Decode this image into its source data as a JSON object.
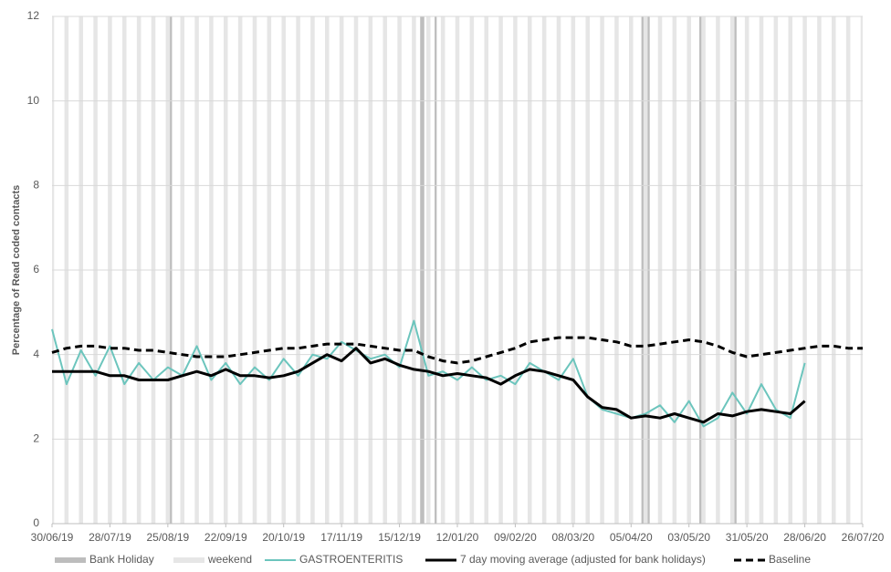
{
  "chart_data": {
    "type": "line",
    "y_label": "Percentage of Read coded contacts",
    "x": [
      "30/06/19",
      "07/07/19",
      "14/07/19",
      "21/07/19",
      "28/07/19",
      "04/08/19",
      "11/08/19",
      "18/08/19",
      "25/08/19",
      "01/09/19",
      "08/09/19",
      "15/09/19",
      "22/09/19",
      "29/09/19",
      "06/10/19",
      "13/10/19",
      "20/10/19",
      "27/10/19",
      "03/11/19",
      "10/11/19",
      "17/11/19",
      "24/11/19",
      "01/12/19",
      "08/12/19",
      "15/12/19",
      "22/12/19",
      "29/12/19",
      "05/01/20",
      "12/01/20",
      "19/01/20",
      "26/01/20",
      "02/02/20",
      "09/02/20",
      "16/02/20",
      "23/02/20",
      "01/03/20",
      "08/03/20",
      "15/03/20",
      "22/03/20",
      "29/03/20",
      "05/04/20",
      "12/04/20",
      "19/04/20",
      "26/04/20",
      "03/05/20",
      "10/05/20",
      "17/05/20",
      "24/05/20",
      "31/05/20",
      "07/06/20",
      "14/06/20",
      "21/06/20",
      "28/06/20",
      "05/07/20",
      "12/07/20",
      "19/07/20",
      "26/07/20"
    ],
    "series": [
      {
        "name": "GASTROENTERITIS",
        "color": "#6cc5bd",
        "dash": "solid",
        "width": 2,
        "values": [
          4.6,
          3.3,
          4.1,
          3.5,
          4.2,
          3.3,
          3.8,
          3.4,
          3.7,
          3.5,
          4.2,
          3.4,
          3.8,
          3.3,
          3.7,
          3.4,
          3.9,
          3.5,
          4.0,
          3.9,
          4.3,
          4.1,
          3.9,
          4.0,
          3.7,
          4.8,
          3.5,
          3.6,
          3.4,
          3.7,
          3.4,
          3.5,
          3.3,
          3.8,
          3.6,
          3.4,
          3.9,
          3.0,
          2.7,
          2.6,
          2.5,
          2.6,
          2.8,
          2.4,
          2.9,
          2.3,
          2.5,
          3.1,
          2.6,
          3.3,
          2.7,
          2.5,
          3.8,
          null,
          null,
          null,
          null
        ]
      },
      {
        "name": "7 day moving average (adjusted for bank holidays)",
        "color": "#000000",
        "dash": "solid",
        "width": 3,
        "values": [
          3.6,
          3.6,
          3.6,
          3.6,
          3.5,
          3.5,
          3.4,
          3.4,
          3.4,
          3.5,
          3.6,
          3.5,
          3.65,
          3.5,
          3.5,
          3.45,
          3.5,
          3.6,
          3.8,
          4.0,
          3.85,
          4.15,
          3.8,
          3.9,
          3.75,
          3.65,
          3.6,
          3.5,
          3.55,
          3.5,
          3.45,
          3.3,
          3.5,
          3.65,
          3.6,
          3.5,
          3.4,
          3.0,
          2.75,
          2.7,
          2.5,
          2.55,
          2.5,
          2.6,
          2.5,
          2.4,
          2.6,
          2.55,
          2.65,
          2.7,
          2.65,
          2.6,
          2.9,
          null,
          null,
          null,
          null
        ]
      },
      {
        "name": "Baseline",
        "color": "#000000",
        "dash": "dashed",
        "width": 3,
        "values": [
          4.05,
          4.15,
          4.2,
          4.2,
          4.15,
          4.15,
          4.1,
          4.1,
          4.05,
          4.0,
          3.95,
          3.95,
          3.95,
          4.0,
          4.05,
          4.1,
          4.15,
          4.15,
          4.2,
          4.25,
          4.25,
          4.25,
          4.2,
          4.15,
          4.1,
          4.1,
          3.95,
          3.85,
          3.8,
          3.85,
          3.95,
          4.05,
          4.15,
          4.3,
          4.35,
          4.4,
          4.4,
          4.4,
          4.35,
          4.3,
          4.2,
          4.2,
          4.25,
          4.3,
          4.35,
          4.3,
          4.2,
          4.05,
          3.95,
          4.0,
          4.05,
          4.1,
          4.15,
          4.2,
          4.2,
          4.15,
          4.15
        ]
      }
    ],
    "bank_holidays": {
      "name": "Bank Holiday",
      "color": "#bdbdbd",
      "dates": [
        "26/08/19",
        "25/12/19",
        "26/12/19",
        "01/01/20",
        "10/04/20",
        "13/04/20",
        "08/05/20",
        "25/05/20"
      ]
    },
    "weekend": {
      "name": "weekend",
      "color": "#e6e6e6"
    },
    "xlim": [
      "30/06/19",
      "26/07/20"
    ],
    "xticks": [
      "30/06/19",
      "28/07/19",
      "25/08/19",
      "22/09/19",
      "20/10/19",
      "17/11/19",
      "15/12/19",
      "12/01/20",
      "09/02/20",
      "08/03/20",
      "05/04/20",
      "03/05/20",
      "31/05/20",
      "28/06/20",
      "26/07/20"
    ],
    "ylim": [
      0,
      12
    ],
    "yticks": [
      0,
      2,
      4,
      6,
      8,
      10,
      12
    ],
    "grid": true
  }
}
